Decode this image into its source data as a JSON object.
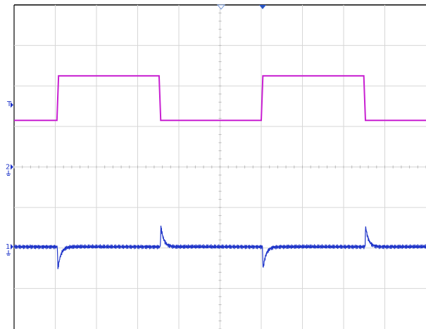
{
  "chart_data": {
    "type": "line",
    "grid": true,
    "divisions": {
      "horizontal": 10,
      "vertical": 8
    },
    "xlim": [
      0,
      10
    ],
    "ylim": [
      -4,
      4
    ],
    "trigger_label": "T",
    "series": [
      {
        "id": "ch2",
        "label": "2",
        "color": "#c81fd1",
        "ground_level": 0,
        "points": [
          [
            0.0,
            1.15
          ],
          [
            1.04,
            1.15
          ],
          [
            1.08,
            2.25
          ],
          [
            3.52,
            2.25
          ],
          [
            3.56,
            1.15
          ],
          [
            6.0,
            1.15
          ],
          [
            6.04,
            2.25
          ],
          [
            8.49,
            2.25
          ],
          [
            8.53,
            1.15
          ],
          [
            10.0,
            1.15
          ]
        ]
      },
      {
        "id": "ch1",
        "label": "1",
        "color": "#1f35c9",
        "ground_level": -1.97,
        "noise_amplitude": 0.04,
        "pulses": [
          {
            "x": 1.05,
            "peak": -2.65
          },
          {
            "x": 3.55,
            "peak": -1.35
          },
          {
            "x": 6.03,
            "peak": -2.65
          },
          {
            "x": 8.52,
            "peak": -1.35
          }
        ]
      }
    ]
  }
}
